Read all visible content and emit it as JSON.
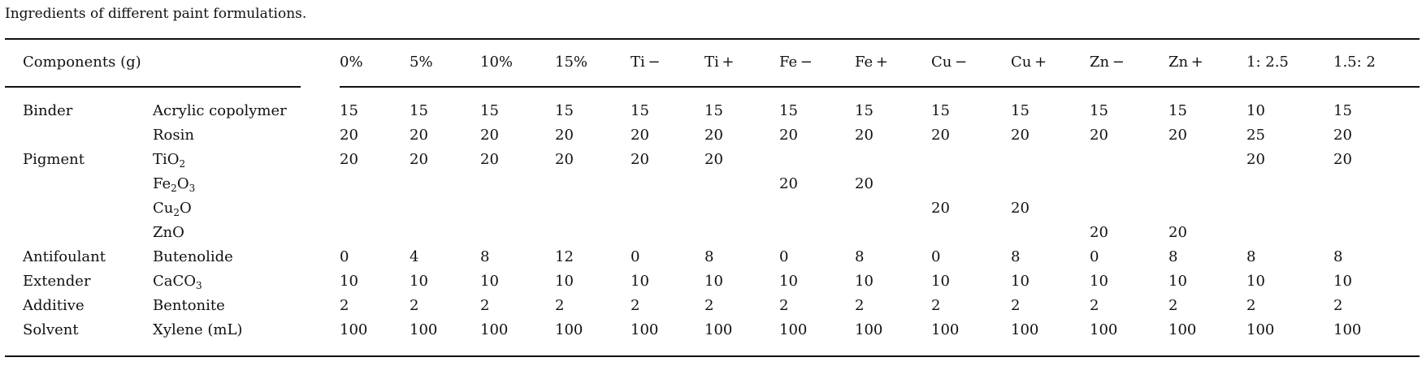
{
  "caption": "Ingredients of different paint formulations.",
  "table": {
    "header_label": "Components (g)",
    "columns": [
      "0%",
      "5%",
      "10%",
      "15%",
      "Ti −",
      "Ti +",
      "Fe −",
      "Fe +",
      "Cu −",
      "Cu +",
      "Zn −",
      "Zn +",
      "1: 2.5",
      "1.5: 2"
    ],
    "rows": [
      {
        "category": "Binder",
        "component": "Acrylic copolymer",
        "values": [
          "15",
          "15",
          "15",
          "15",
          "15",
          "15",
          "15",
          "15",
          "15",
          "15",
          "15",
          "15",
          "10",
          "15"
        ]
      },
      {
        "category": "",
        "component": "Rosin",
        "values": [
          "20",
          "20",
          "20",
          "20",
          "20",
          "20",
          "20",
          "20",
          "20",
          "20",
          "20",
          "20",
          "25",
          "20"
        ]
      },
      {
        "category": "Pigment",
        "component": "TiO<sub>2</sub>",
        "values": [
          "20",
          "20",
          "20",
          "20",
          "20",
          "20",
          "",
          "",
          "",
          "",
          "",
          "",
          "20",
          "20"
        ]
      },
      {
        "category": "",
        "component": "Fe<sub>2</sub>O<sub>3</sub>",
        "values": [
          "",
          "",
          "",
          "",
          "",
          "",
          "20",
          "20",
          "",
          "",
          "",
          "",
          "",
          ""
        ]
      },
      {
        "category": "",
        "component": "Cu<sub>2</sub>O",
        "values": [
          "",
          "",
          "",
          "",
          "",
          "",
          "",
          "",
          "20",
          "20",
          "",
          "",
          "",
          ""
        ]
      },
      {
        "category": "",
        "component": "ZnO",
        "values": [
          "",
          "",
          "",
          "",
          "",
          "",
          "",
          "",
          "",
          "",
          "20",
          "20",
          "",
          ""
        ]
      },
      {
        "category": "Antifoulant",
        "component": "Butenolide",
        "values": [
          "0",
          "4",
          "8",
          "12",
          "0",
          "8",
          "0",
          "8",
          "0",
          "8",
          "0",
          "8",
          "8",
          "8"
        ]
      },
      {
        "category": "Extender",
        "component": "CaCO<sub>3</sub>",
        "values": [
          "10",
          "10",
          "10",
          "10",
          "10",
          "10",
          "10",
          "10",
          "10",
          "10",
          "10",
          "10",
          "10",
          "10"
        ]
      },
      {
        "category": "Additive",
        "component": "Bentonite",
        "values": [
          "2",
          "2",
          "2",
          "2",
          "2",
          "2",
          "2",
          "2",
          "2",
          "2",
          "2",
          "2",
          "2",
          "2"
        ]
      },
      {
        "category": "Solvent",
        "component": "Xylene (mL)",
        "values": [
          "100",
          "100",
          "100",
          "100",
          "100",
          "100",
          "100",
          "100",
          "100",
          "100",
          "100",
          "100",
          "100",
          "100"
        ]
      }
    ]
  }
}
